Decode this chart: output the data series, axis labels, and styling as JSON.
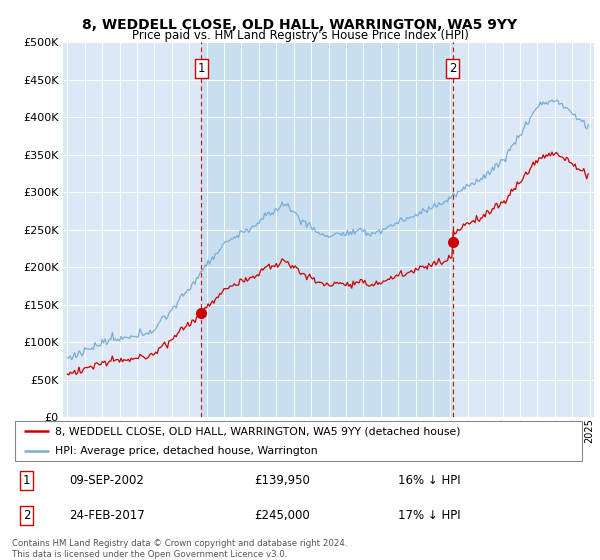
{
  "title": "8, WEDDELL CLOSE, OLD HALL, WARRINGTON, WA5 9YY",
  "subtitle": "Price paid vs. HM Land Registry's House Price Index (HPI)",
  "legend_line1": "8, WEDDELL CLOSE, OLD HALL, WARRINGTON, WA5 9YY (detached house)",
  "legend_line2": "HPI: Average price, detached house, Warrington",
  "footnote": "Contains HM Land Registry data © Crown copyright and database right 2024.\nThis data is licensed under the Open Government Licence v3.0.",
  "sale1_date": "09-SEP-2002",
  "sale1_price": 139950,
  "sale1_x": 2002.69,
  "sale2_date": "24-FEB-2017",
  "sale2_price": 245000,
  "sale2_x": 2017.13,
  "sale1_hpi_pct": "16% ↓ HPI",
  "sale2_hpi_pct": "17% ↓ HPI",
  "hpi_color": "#7aadd4",
  "price_color": "#cc0000",
  "vline_color": "#cc0000",
  "plot_bg": "#dce8f5",
  "shade_color": "#c8dff0",
  "grid_color": "#ffffff",
  "ylim": [
    0,
    500000
  ],
  "xlim": [
    1994.75,
    2025.25
  ]
}
